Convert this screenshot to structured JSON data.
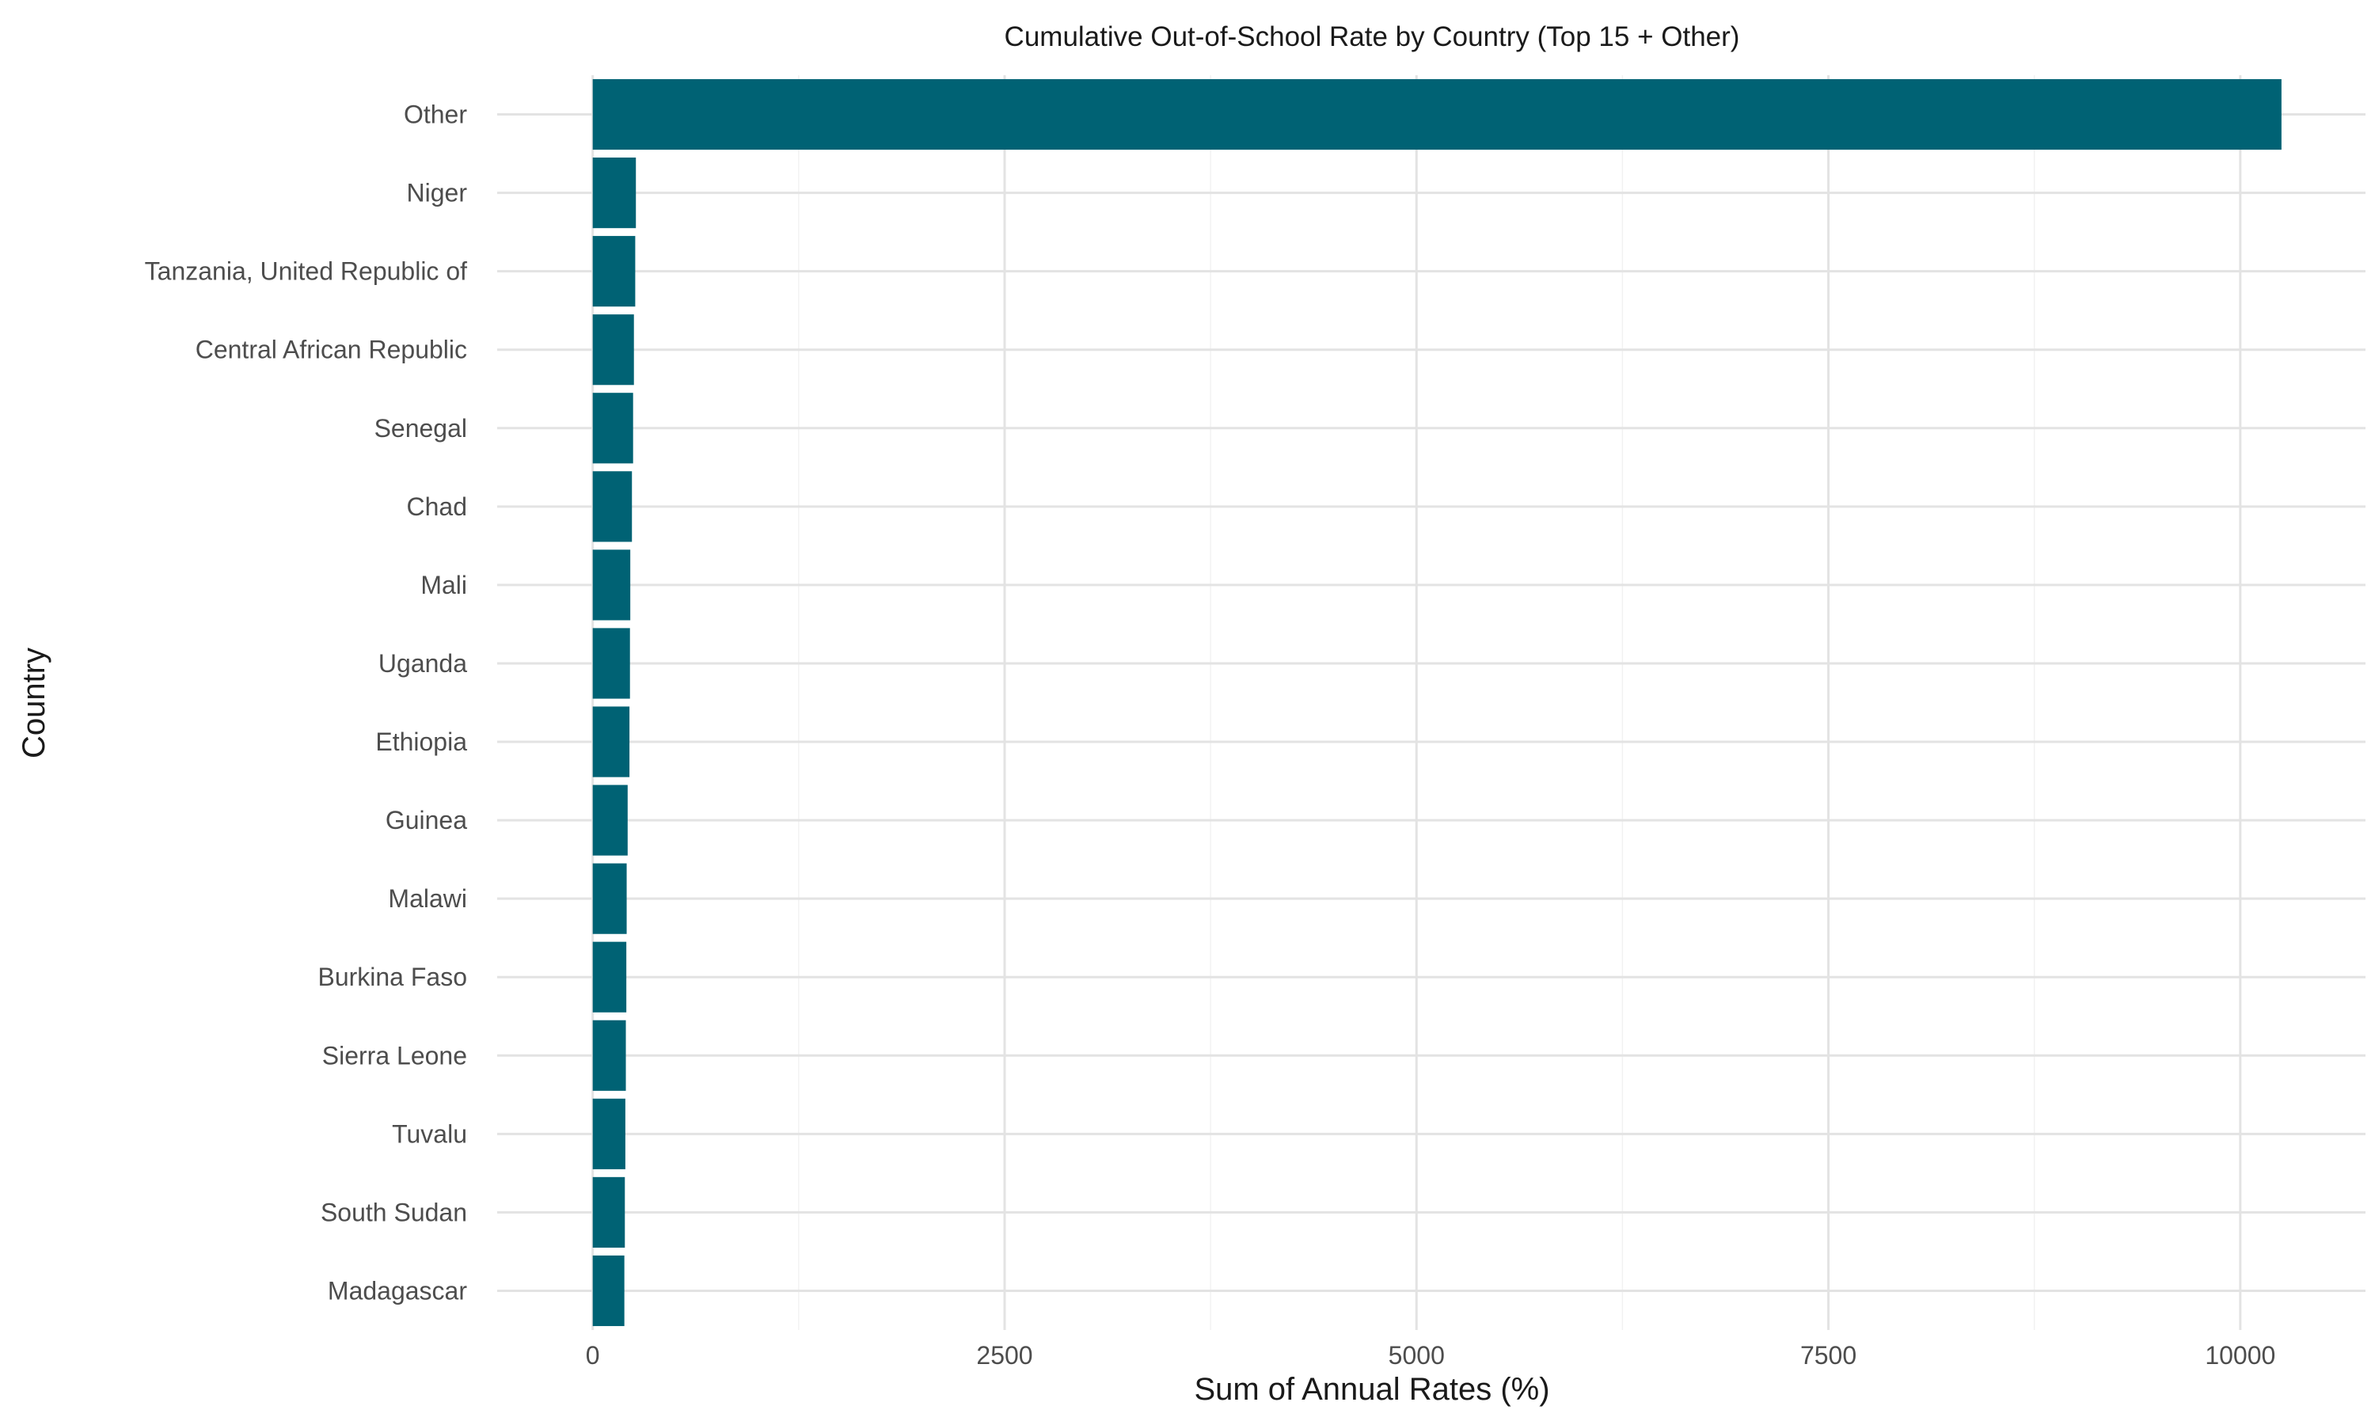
{
  "chart_data": {
    "type": "bar",
    "orientation": "horizontal",
    "title": "Cumulative Out-of-School Rate by Country (Top 15 + Other)",
    "xlabel": "Sum of Annual Rates (%)",
    "ylabel": "Country",
    "xlim": [
      -580,
      10760
    ],
    "xticks": [
      0,
      2500,
      5000,
      7500,
      10000
    ],
    "xtick_labels": [
      "0",
      "2500",
      "5000",
      "7500",
      "10000"
    ],
    "grid": true,
    "legend": "none",
    "bar_color": "#006274",
    "categories": [
      "Other",
      "Niger",
      "Tanzania, United Republic of",
      "Central African Republic",
      "Senegal",
      "Chad",
      "Mali",
      "Uganda",
      "Ethiopia",
      "Guinea",
      "Malawi",
      "Burkina Faso",
      "Sierra Leone",
      "Tuvalu",
      "South Sudan",
      "Madagascar"
    ],
    "values": [
      10250,
      262,
      258,
      250,
      245,
      238,
      228,
      226,
      223,
      212,
      206,
      204,
      201,
      198,
      195,
      192
    ]
  }
}
